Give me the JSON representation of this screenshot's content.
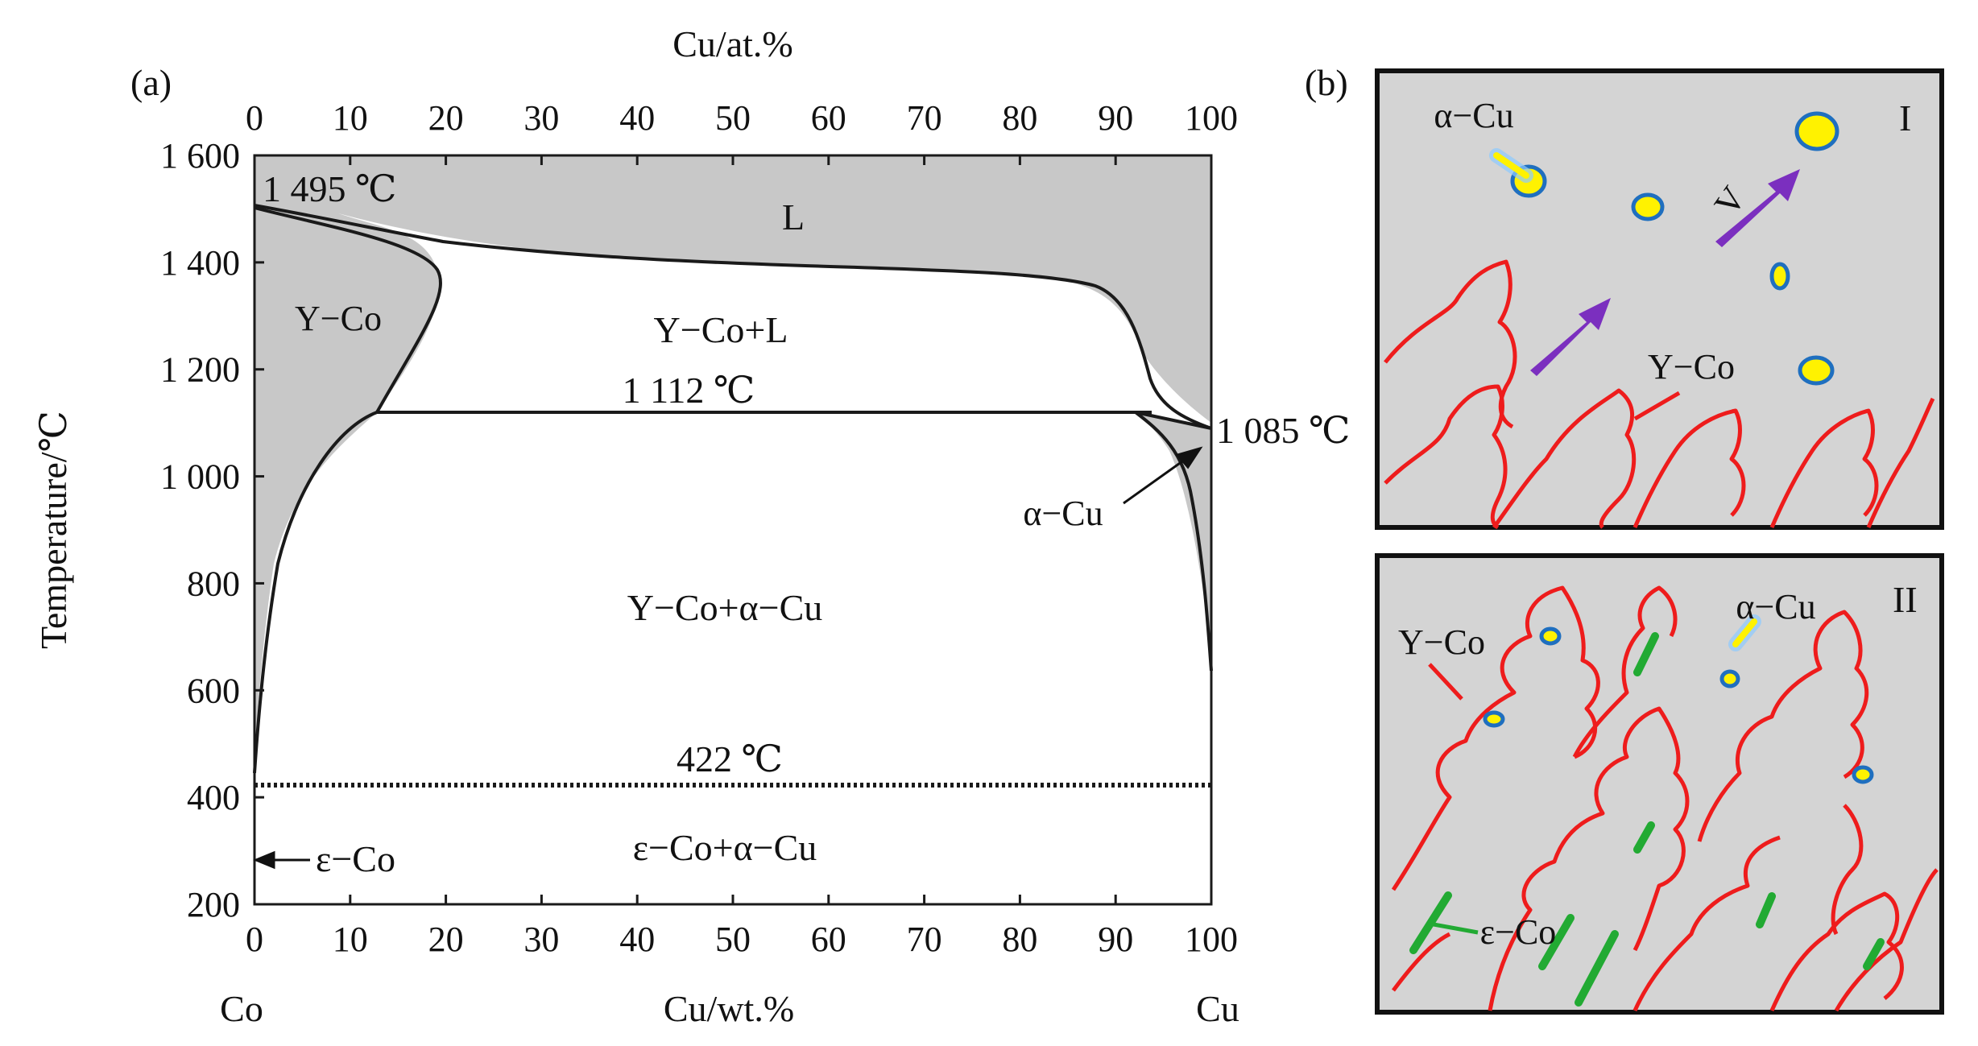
{
  "panel_a": {
    "label": "(a)",
    "top_axis_title": "Cu/at.%",
    "bottom_axis_title": "Cu/wt.%",
    "y_axis_title": "Temperature/℃",
    "top_ticks": [
      "0",
      "10",
      "20",
      "30",
      "40",
      "50",
      "60",
      "70",
      "80",
      "90",
      "100"
    ],
    "bottom_ticks": [
      "0",
      "10",
      "20",
      "30",
      "40",
      "50",
      "60",
      "70",
      "80",
      "90",
      "100"
    ],
    "y_ticks": [
      "1 600",
      "1 400",
      "1 200",
      "1 000",
      "800",
      "600",
      "400",
      "200"
    ],
    "left_element": "Co",
    "right_element": "Cu",
    "annotations": {
      "co_melting": "1 495 ℃",
      "liquid": "L",
      "gamma_co": "Y−Co",
      "gamma_co_liquid": "Y−Co+L",
      "peritectic": "1 112 ℃",
      "cu_melting": "1 085 ℃",
      "alpha_cu": "α−Cu",
      "two_phase": "Y−Co+α−Cu",
      "eutectoid": "422 ℃",
      "epsilon_two_phase": "ε−Co+α−Cu",
      "epsilon_co": "ε−Co"
    }
  },
  "panel_b": {
    "label": "(b)",
    "box1": {
      "numeral": "I",
      "alpha_cu": "α−Cu",
      "velocity": "V",
      "gamma_co": "Y−Co"
    },
    "box2": {
      "numeral": "II",
      "gamma_co": "Y−Co",
      "alpha_cu": "α−Cu",
      "epsilon_co": "ε−Co"
    }
  },
  "colors": {
    "phase_fill": "#c8c8c8",
    "line": "#1a1a1a",
    "dendrite": "#ee1c1c",
    "particle": "#fff200",
    "particle_edge": "#1f6fbf",
    "arrow": "#7b2fbf",
    "epsilon": "#22aa33"
  },
  "chart_data": {
    "type": "phase_diagram",
    "x_axis": {
      "label": "Cu/wt.%",
      "range": [
        0,
        100
      ]
    },
    "x2_axis": {
      "label": "Cu/at.%",
      "range": [
        0,
        100
      ]
    },
    "y_axis": {
      "label": "Temperature/℃",
      "range": [
        200,
        1600
      ]
    },
    "invariant_temperatures": [
      1495,
      1112,
      1085,
      422
    ]
  }
}
